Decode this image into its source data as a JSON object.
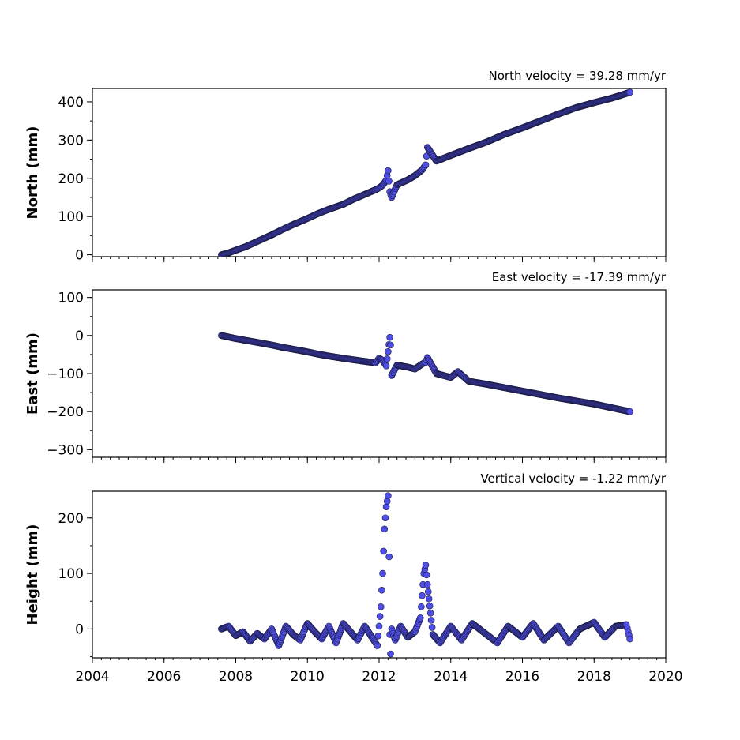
{
  "chart_data": [
    {
      "type": "scatter",
      "title": "North velocity = 39.28 mm/yr",
      "xlabel": "",
      "ylabel": "North (mm)",
      "xlim": [
        2004,
        2020
      ],
      "ylim": [
        -5,
        435
      ],
      "yticks": [
        0,
        100,
        200,
        300,
        400
      ],
      "ytick_labels": [
        "0",
        "100",
        "200",
        "300",
        "400"
      ],
      "xticks": [
        2004,
        2006,
        2008,
        2010,
        2012,
        2014,
        2016,
        2018,
        2020
      ],
      "xtick_labels": [],
      "grid": false,
      "marker_color": "#4f4fe8",
      "series": [
        {
          "x": [
            2007.6,
            2007.8,
            2008.0,
            2008.3,
            2008.6,
            2009.0,
            2009.3,
            2009.6,
            2010.0,
            2010.3,
            2010.6,
            2011.0,
            2011.3,
            2011.6,
            2011.9,
            2012.0,
            2012.1,
            2012.2,
            2012.25,
            2012.3,
            2012.35,
            2012.5,
            2012.8,
            2013.0,
            2013.2,
            2013.3,
            2013.35,
            2013.6,
            2014.0,
            2014.5,
            2015.0,
            2015.5,
            2016.0,
            2016.5,
            2017.0,
            2017.5,
            2018.0,
            2018.5,
            2019.0
          ],
          "y": [
            0,
            5,
            12,
            22,
            35,
            52,
            66,
            79,
            95,
            108,
            119,
            132,
            146,
            158,
            170,
            175,
            182,
            195,
            220,
            165,
            150,
            183,
            196,
            207,
            222,
            235,
            281,
            245,
            260,
            278,
            295,
            315,
            332,
            350,
            368,
            385,
            398,
            410,
            425
          ]
        }
      ]
    },
    {
      "type": "scatter",
      "title": "East velocity = -17.39 mm/yr",
      "xlabel": "",
      "ylabel": "East (mm)",
      "xlim": [
        2004,
        2020
      ],
      "ylim": [
        -320,
        120
      ],
      "yticks": [
        -300,
        -200,
        -100,
        0,
        100
      ],
      "ytick_labels": [
        "−300",
        "−200",
        "−100",
        "0",
        "100"
      ],
      "xticks": [
        2004,
        2006,
        2008,
        2010,
        2012,
        2014,
        2016,
        2018,
        2020
      ],
      "xtick_labels": [],
      "grid": false,
      "marker_color": "#4f4fe8",
      "series": [
        {
          "x": [
            2007.6,
            2007.8,
            2008.0,
            2008.3,
            2008.6,
            2009.0,
            2009.3,
            2009.6,
            2010.0,
            2010.3,
            2010.6,
            2011.0,
            2011.3,
            2011.6,
            2011.9,
            2012.0,
            2012.1,
            2012.2,
            2012.3,
            2012.32,
            2012.35,
            2012.5,
            2012.8,
            2013.0,
            2013.2,
            2013.3,
            2013.35,
            2013.6,
            2014.0,
            2014.2,
            2014.5,
            2015.0,
            2015.5,
            2016.0,
            2016.5,
            2017.0,
            2017.5,
            2018.0,
            2018.5,
            2019.0
          ],
          "y": [
            0,
            -4,
            -8,
            -13,
            -18,
            -25,
            -31,
            -36,
            -43,
            -49,
            -54,
            -60,
            -64,
            -68,
            -72,
            -60,
            -65,
            -80,
            -5,
            -25,
            -105,
            -78,
            -83,
            -88,
            -75,
            -70,
            -58,
            -100,
            -110,
            -95,
            -120,
            -128,
            -137,
            -146,
            -155,
            -164,
            -172,
            -180,
            -190,
            -200
          ]
        }
      ]
    },
    {
      "type": "scatter",
      "title": "Vertical velocity = -1.22 mm/yr",
      "xlabel": "",
      "ylabel": "Height (mm)",
      "xlim": [
        2004,
        2020
      ],
      "ylim": [
        -52,
        248
      ],
      "yticks": [
        0,
        100,
        200
      ],
      "ytick_labels": [
        "0",
        "100",
        "200"
      ],
      "xticks": [
        2004,
        2006,
        2008,
        2010,
        2012,
        2014,
        2016,
        2018,
        2020
      ],
      "xtick_labels": [
        "2004",
        "2006",
        "2008",
        "2010",
        "2012",
        "2014",
        "2016",
        "2018",
        "2020"
      ],
      "grid": false,
      "marker_color": "#4f4fe8",
      "series": [
        {
          "x": [
            2007.6,
            2007.8,
            2008.0,
            2008.2,
            2008.4,
            2008.6,
            2008.8,
            2009.0,
            2009.2,
            2009.4,
            2009.6,
            2009.8,
            2010.0,
            2010.2,
            2010.4,
            2010.6,
            2010.8,
            2011.0,
            2011.2,
            2011.4,
            2011.6,
            2011.8,
            2011.95,
            2012.05,
            2012.1,
            2012.15,
            2012.2,
            2012.25,
            2012.28,
            2012.3,
            2012.32,
            2012.35,
            2012.45,
            2012.6,
            2012.8,
            2013.0,
            2013.15,
            2013.2,
            2013.25,
            2013.3,
            2013.35,
            2013.5,
            2013.7,
            2014.0,
            2014.3,
            2014.6,
            2015.0,
            2015.3,
            2015.6,
            2016.0,
            2016.3,
            2016.6,
            2017.0,
            2017.3,
            2017.6,
            2018.0,
            2018.3,
            2018.6,
            2018.9,
            2019.0
          ],
          "y": [
            0,
            5,
            -12,
            -5,
            -22,
            -8,
            -18,
            0,
            -30,
            5,
            -10,
            -20,
            10,
            -5,
            -18,
            5,
            -25,
            10,
            -5,
            -20,
            5,
            -15,
            -30,
            40,
            100,
            180,
            220,
            240,
            130,
            -10,
            -45,
            0,
            -20,
            5,
            -15,
            -5,
            20,
            60,
            100,
            115,
            80,
            -10,
            -25,
            5,
            -20,
            10,
            -10,
            -25,
            5,
            -15,
            10,
            -20,
            5,
            -25,
            0,
            12,
            -15,
            5,
            8,
            -18
          ]
        }
      ]
    }
  ]
}
